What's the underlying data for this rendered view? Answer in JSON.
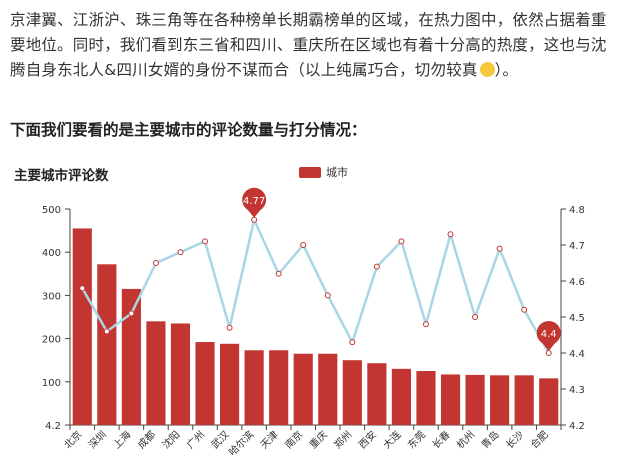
{
  "article": {
    "paragraph_lines": [
      "京津翼、江浙沪、珠三角等在各种榜单长期霸榜单的区域，在热力图中，依然占据着重",
      "要地位。同时，我们看到东三省和四川、重庆所在区域也有着十分高的热度，这也与沈",
      "腾自身东北人&四川女婿的身份不谋而合（以上纯属巧合，切勿较真"
    ],
    "paragraph_end": "）。",
    "emoji_name": "grinning-face-emoji",
    "section_heading": "下面我们要看的是主要城市的评论数量与打分情况："
  },
  "chart_data": {
    "type": "bar+line",
    "title": "主要城市评论数",
    "legend": [
      "城市"
    ],
    "legend_position": "top-center",
    "categories": [
      "北京",
      "深圳",
      "上海",
      "成都",
      "沈阳",
      "广州",
      "武汉",
      "哈尔滨",
      "天津",
      "南京",
      "重庆",
      "郑州",
      "西安",
      "大连",
      "东莞",
      "长春",
      "杭州",
      "青岛",
      "长沙",
      "合肥"
    ],
    "series": [
      {
        "name": "城市",
        "type": "bar",
        "axis": "left",
        "values": [
          455,
          372,
          315,
          240,
          235,
          192,
          188,
          173,
          173,
          165,
          165,
          150,
          143,
          130,
          125,
          117,
          116,
          115,
          115,
          108
        ]
      },
      {
        "type": "line",
        "axis": "right",
        "values": [
          4.58,
          4.46,
          4.51,
          4.65,
          4.68,
          4.71,
          4.47,
          4.77,
          4.62,
          4.7,
          4.56,
          4.43,
          4.64,
          4.71,
          4.48,
          4.73,
          4.5,
          4.69,
          4.52,
          4.4
        ]
      }
    ],
    "left_axis": {
      "min": 0,
      "max": 500,
      "ticks": [
        100,
        200,
        300,
        400,
        500
      ],
      "bottom_label": "4.2"
    },
    "right_axis": {
      "min": 4.2,
      "max": 4.8,
      "ticks": [
        4.2,
        4.3,
        4.4,
        4.5,
        4.6,
        4.7,
        4.8
      ]
    },
    "mark_points": [
      {
        "label": "4.77",
        "category": "哈尔滨",
        "value": 4.77
      },
      {
        "label": "4.4",
        "category": "合肥",
        "value": 4.4
      }
    ],
    "colors": {
      "bar": "#c23531",
      "line": "#a9d6e5",
      "pin": "#c23531",
      "axis": "#444444"
    },
    "grid": false
  }
}
